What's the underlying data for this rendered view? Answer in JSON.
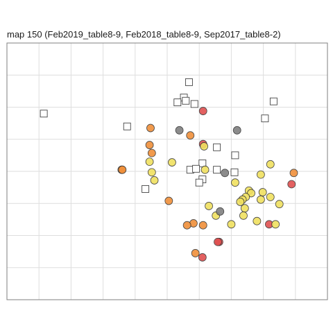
{
  "title": "map 150 (Feb2019_table8-9, Feb2018_table8-9, Sep2017_table8-2)",
  "colors": {
    "red": "#e05050",
    "orange": "#f0903a",
    "yellow": "#f0e060",
    "gray": "#808080",
    "grid": "#dedede",
    "border": "#7f7f7f"
  },
  "chart_data": {
    "type": "scatter",
    "title": "map 150 (Feb2019_table8-9, Feb2018_table8-9, Sep2017_table8-2)",
    "xlabel": "",
    "ylabel": "",
    "xlim": [
      0,
      10
    ],
    "ylim": [
      0,
      8
    ],
    "grid": true,
    "legend": "none",
    "circles": [
      {
        "x": 6.12,
        "y": 5.88,
        "color": "red"
      },
      {
        "x": 6.12,
        "y": 4.85,
        "color": "red"
      },
      {
        "x": 8.88,
        "y": 3.6,
        "color": "red"
      },
      {
        "x": 8.18,
        "y": 2.35,
        "color": "red"
      },
      {
        "x": 6.62,
        "y": 1.8,
        "color": "red"
      },
      {
        "x": 6.58,
        "y": 1.8,
        "color": "red"
      },
      {
        "x": 6.1,
        "y": 1.32,
        "color": "red"
      },
      {
        "x": 4.48,
        "y": 5.35,
        "color": "orange"
      },
      {
        "x": 5.72,
        "y": 5.12,
        "color": "orange"
      },
      {
        "x": 4.45,
        "y": 4.82,
        "color": "orange"
      },
      {
        "x": 4.52,
        "y": 4.57,
        "color": "orange"
      },
      {
        "x": 3.58,
        "y": 4.05,
        "color": "orange"
      },
      {
        "x": 3.6,
        "y": 4.05,
        "color": "orange"
      },
      {
        "x": 5.05,
        "y": 3.08,
        "color": "orange"
      },
      {
        "x": 5.82,
        "y": 2.38,
        "color": "orange"
      },
      {
        "x": 5.62,
        "y": 2.32,
        "color": "orange"
      },
      {
        "x": 6.12,
        "y": 2.32,
        "color": "orange"
      },
      {
        "x": 8.95,
        "y": 3.95,
        "color": "orange"
      },
      {
        "x": 5.88,
        "y": 1.45,
        "color": "orange"
      },
      {
        "x": 6.15,
        "y": 4.78,
        "color": "yellow"
      },
      {
        "x": 5.15,
        "y": 4.28,
        "color": "yellow"
      },
      {
        "x": 4.45,
        "y": 4.3,
        "color": "yellow"
      },
      {
        "x": 4.52,
        "y": 3.97,
        "color": "yellow"
      },
      {
        "x": 4.6,
        "y": 3.72,
        "color": "yellow"
      },
      {
        "x": 6.18,
        "y": 4.05,
        "color": "yellow"
      },
      {
        "x": 7.12,
        "y": 3.65,
        "color": "yellow"
      },
      {
        "x": 7.92,
        "y": 3.9,
        "color": "yellow"
      },
      {
        "x": 8.22,
        "y": 4.22,
        "color": "yellow"
      },
      {
        "x": 7.55,
        "y": 3.4,
        "color": "yellow"
      },
      {
        "x": 7.62,
        "y": 3.32,
        "color": "yellow"
      },
      {
        "x": 7.98,
        "y": 3.35,
        "color": "yellow"
      },
      {
        "x": 8.22,
        "y": 3.2,
        "color": "yellow"
      },
      {
        "x": 7.45,
        "y": 3.2,
        "color": "yellow"
      },
      {
        "x": 7.35,
        "y": 3.12,
        "color": "yellow"
      },
      {
        "x": 7.28,
        "y": 3.05,
        "color": "yellow"
      },
      {
        "x": 7.92,
        "y": 3.12,
        "color": "yellow"
      },
      {
        "x": 8.5,
        "y": 2.98,
        "color": "yellow"
      },
      {
        "x": 7.42,
        "y": 2.85,
        "color": "yellow"
      },
      {
        "x": 6.3,
        "y": 2.92,
        "color": "yellow"
      },
      {
        "x": 6.52,
        "y": 2.62,
        "color": "yellow"
      },
      {
        "x": 7.38,
        "y": 2.62,
        "color": "yellow"
      },
      {
        "x": 7.8,
        "y": 2.45,
        "color": "yellow"
      },
      {
        "x": 8.38,
        "y": 2.35,
        "color": "yellow"
      },
      {
        "x": 7.0,
        "y": 2.35,
        "color": "yellow"
      },
      {
        "x": 5.38,
        "y": 5.28,
        "color": "gray"
      },
      {
        "x": 7.18,
        "y": 5.28,
        "color": "gray"
      },
      {
        "x": 6.8,
        "y": 3.95,
        "color": "gray"
      },
      {
        "x": 6.65,
        "y": 2.75,
        "color": "gray"
      }
    ],
    "squares": [
      {
        "x": 1.15,
        "y": 5.8
      },
      {
        "x": 3.75,
        "y": 5.4
      },
      {
        "x": 5.68,
        "y": 6.78
      },
      {
        "x": 5.52,
        "y": 6.3
      },
      {
        "x": 5.58,
        "y": 6.2
      },
      {
        "x": 5.85,
        "y": 6.1
      },
      {
        "x": 5.32,
        "y": 6.15
      },
      {
        "x": 8.32,
        "y": 6.18
      },
      {
        "x": 8.05,
        "y": 5.65
      },
      {
        "x": 6.55,
        "y": 4.75
      },
      {
        "x": 7.12,
        "y": 4.5
      },
      {
        "x": 6.1,
        "y": 4.25
      },
      {
        "x": 5.72,
        "y": 4.05
      },
      {
        "x": 5.9,
        "y": 4.08
      },
      {
        "x": 6.55,
        "y": 4.05
      },
      {
        "x": 7.1,
        "y": 3.97
      },
      {
        "x": 6.1,
        "y": 3.75
      },
      {
        "x": 6.0,
        "y": 3.65
      },
      {
        "x": 4.32,
        "y": 3.45
      }
    ]
  }
}
